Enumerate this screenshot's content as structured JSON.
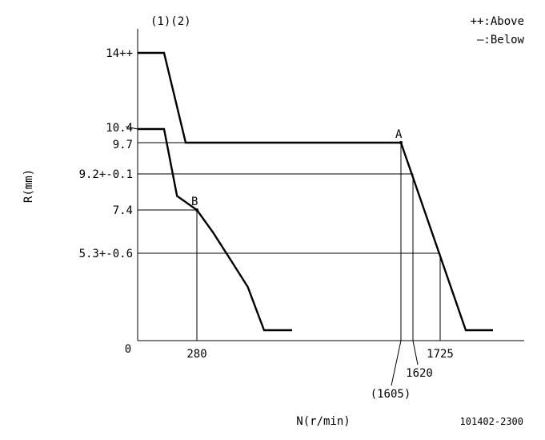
{
  "chart_data": {
    "type": "line",
    "ylabel": "R(mm)",
    "xlabel": "N(r/min)",
    "header": "(1)(2)",
    "legend": [
      "++:Above",
      "—:Below"
    ],
    "figure_id": "101402-2300",
    "origin_label": "0",
    "y_tick_labels": [
      {
        "value": 14,
        "label": "14++"
      },
      {
        "value": 10.4,
        "label": "10.4"
      },
      {
        "value": 9.7,
        "label": "9.7"
      },
      {
        "value": 9.2,
        "label": "9.2+-0.1"
      },
      {
        "value": 7.4,
        "label": "7.4"
      },
      {
        "value": 5.3,
        "label": "5.3+-0.6"
      }
    ],
    "x_tick_labels": [
      {
        "value": 280,
        "label": "280"
      },
      {
        "value": 1725,
        "label": "1725"
      },
      {
        "value": 1620,
        "label": "1620"
      },
      {
        "value": 1605,
        "label": "(1605)"
      }
    ],
    "points": [
      {
        "name": "A",
        "x": 1605,
        "y": 9.7
      },
      {
        "name": "B",
        "x": 280,
        "y": 7.4
      }
    ],
    "series": [
      {
        "line": "above",
        "points": [
          [
            0,
            14
          ],
          [
            130,
            14
          ],
          [
            230,
            9.7
          ],
          [
            1605,
            9.7
          ],
          [
            1900,
            0.5
          ],
          [
            2010,
            0.5
          ]
        ]
      },
      {
        "line": "below",
        "points": [
          [
            0,
            10.4
          ],
          [
            130,
            10.4
          ],
          [
            190,
            8.1
          ],
          [
            280,
            7.4
          ],
          [
            360,
            6.3
          ],
          [
            450,
            4.8
          ],
          [
            530,
            3.2
          ],
          [
            580,
            1.5
          ],
          [
            610,
            0.5
          ],
          [
            730,
            0.5
          ]
        ]
      }
    ],
    "guides": [
      {
        "from": [
          0,
          9.7
        ],
        "to": [
          1605,
          9.7
        ]
      },
      {
        "from": [
          0,
          9.2
        ],
        "to": [
          1620,
          9.2
        ]
      },
      {
        "from": [
          0,
          7.4
        ],
        "to": [
          280,
          7.4
        ]
      },
      {
        "from": [
          0,
          5.3
        ],
        "to": [
          1725,
          5.3
        ]
      },
      {
        "from": [
          280,
          7.4
        ],
        "to": [
          280,
          0
        ]
      },
      {
        "from": [
          1605,
          9.7
        ],
        "to": [
          1605,
          0
        ]
      },
      {
        "from": [
          1620,
          9.2
        ],
        "to": [
          1620,
          0
        ]
      },
      {
        "from": [
          1725,
          5.3
        ],
        "to": [
          1725,
          0
        ]
      }
    ]
  }
}
